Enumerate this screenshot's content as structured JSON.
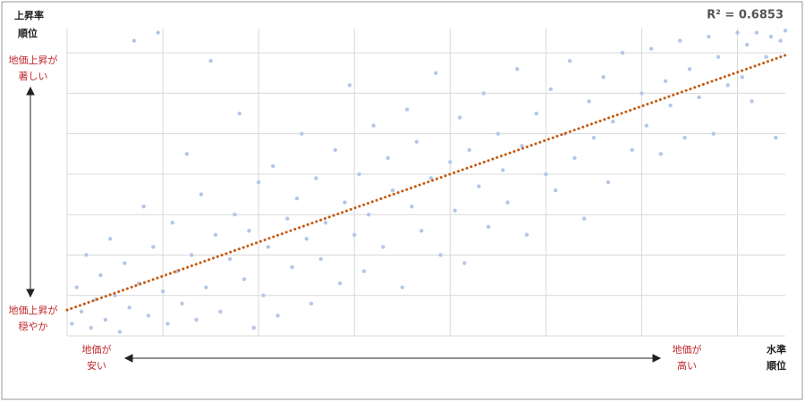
{
  "chart_data": {
    "type": "scatter",
    "r2_label": "R² = 0.6853",
    "y_axis_label": [
      "上昇率",
      "順位"
    ],
    "x_axis_label": [
      "水準",
      "順位"
    ],
    "y_high_label": [
      "地価上昇が",
      "著しい"
    ],
    "y_low_label": [
      "地価上昇が",
      "穏やか"
    ],
    "x_low_label": [
      "地価が",
      "安い"
    ],
    "x_high_label": [
      "地価が",
      "高い"
    ],
    "xlim": [
      0,
      7.5
    ],
    "ylim": [
      0,
      7.6
    ],
    "xticks": [
      0,
      1,
      2,
      3,
      4,
      5,
      6,
      7
    ],
    "yticks": [
      0,
      1,
      2,
      3,
      4,
      5,
      6,
      7
    ],
    "grid": true,
    "series": [
      {
        "color": "#b4c7e7",
        "x": [
          0.05,
          0.1,
          0.15,
          0.2,
          0.25,
          0.3,
          0.35,
          0.4,
          0.45,
          0.5,
          0.55,
          0.6,
          0.65,
          0.7,
          0.75,
          0.8,
          0.85,
          0.9,
          0.95,
          1.0,
          1.05,
          1.1,
          1.15,
          1.2,
          1.25,
          1.3,
          1.35,
          1.4,
          1.45,
          1.5,
          1.55,
          1.6,
          1.7,
          1.75,
          1.8,
          1.85,
          1.9,
          1.95,
          2.0,
          2.05,
          2.1,
          2.15,
          2.2,
          2.3,
          2.35,
          2.4,
          2.45,
          2.5,
          2.55,
          2.6,
          2.65,
          2.7,
          2.8,
          2.85,
          2.9,
          2.95,
          3.0,
          3.05,
          3.1,
          3.15,
          3.2,
          3.3,
          3.35,
          3.4,
          3.5,
          3.55,
          3.6,
          3.65,
          3.7,
          3.8,
          3.85,
          3.9,
          4.0,
          4.05,
          4.1,
          4.15,
          4.2,
          4.3,
          4.35,
          4.4,
          4.5,
          4.55,
          4.6,
          4.7,
          4.75,
          4.8,
          4.9,
          5.0,
          5.05,
          5.1,
          5.2,
          5.25,
          5.3,
          5.4,
          5.45,
          5.5,
          5.6,
          5.65,
          5.7,
          5.8,
          5.9,
          6.0,
          6.05,
          6.1,
          6.2,
          6.25,
          6.3,
          6.4,
          6.45,
          6.5,
          6.6,
          6.7,
          6.75,
          6.8,
          6.9,
          7.0,
          7.05,
          7.1,
          7.15,
          7.2,
          7.3,
          7.35,
          7.4,
          7.45,
          7.5
        ],
        "values": [
          0.3,
          1.2,
          0.6,
          2.0,
          0.2,
          0.9,
          1.5,
          0.4,
          2.4,
          1.0,
          0.1,
          1.8,
          0.7,
          7.3,
          1.3,
          3.2,
          0.5,
          2.2,
          7.5,
          1.1,
          0.3,
          2.8,
          1.6,
          0.8,
          4.5,
          2.0,
          0.4,
          3.5,
          1.2,
          6.8,
          2.5,
          0.6,
          1.9,
          3.0,
          5.5,
          1.4,
          2.6,
          0.2,
          3.8,
          1.0,
          2.2,
          4.2,
          0.5,
          2.9,
          1.7,
          3.4,
          5.0,
          2.4,
          0.8,
          3.9,
          1.9,
          2.8,
          4.6,
          1.3,
          3.3,
          6.2,
          2.5,
          4.0,
          1.6,
          3.0,
          5.2,
          2.2,
          4.4,
          3.6,
          1.2,
          5.6,
          3.2,
          4.8,
          2.6,
          3.9,
          6.5,
          2.0,
          4.3,
          3.1,
          5.4,
          1.8,
          4.6,
          3.7,
          6.0,
          2.7,
          5.0,
          4.1,
          3.3,
          6.6,
          4.7,
          2.5,
          5.5,
          4.0,
          6.1,
          3.6,
          5.0,
          6.8,
          4.4,
          2.9,
          5.8,
          4.9,
          6.4,
          3.8,
          5.3,
          7.0,
          4.6,
          6.0,
          5.2,
          7.1,
          4.5,
          6.3,
          5.7,
          7.3,
          4.9,
          6.6,
          5.9,
          7.4,
          5.0,
          6.9,
          6.2,
          7.5,
          6.4,
          7.2,
          5.8,
          7.5,
          6.9,
          7.4,
          4.9,
          7.3,
          7.55
        ]
      }
    ],
    "trendline": {
      "color": "#c55a11",
      "x": [
        0,
        7.5
      ],
      "values": [
        0.64,
        6.94
      ]
    }
  }
}
